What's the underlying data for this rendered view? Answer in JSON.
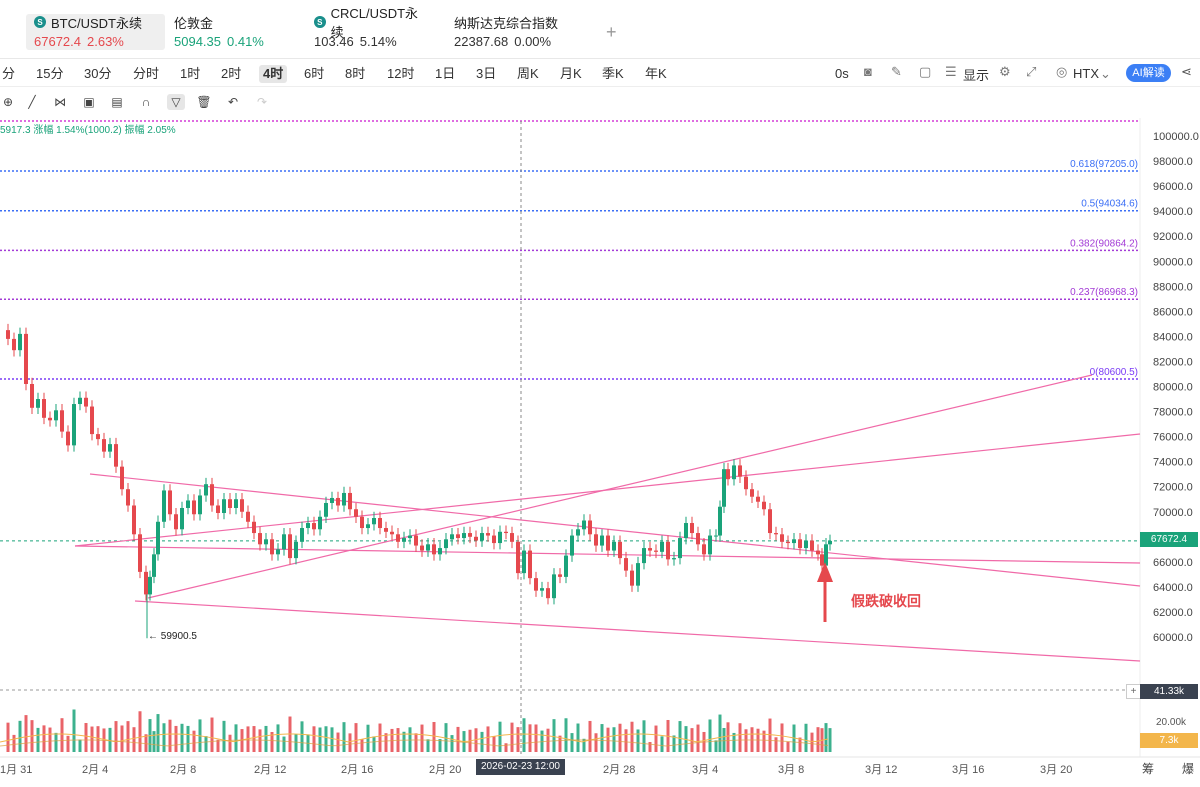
{
  "tickers": [
    {
      "name": "BTC/USDT永续",
      "price": "67672.4",
      "change": "2.63%",
      "dir": "down",
      "active": true
    },
    {
      "name": "伦敦金",
      "price": "5094.35",
      "change": "0.41%",
      "dir": "up",
      "active": false
    },
    {
      "name": "CRCL/USDT永续",
      "price": "103.46",
      "change": "5.14%",
      "dir": "neutral",
      "active": false
    },
    {
      "name": "纳斯达克综合指数",
      "price": "22387.68",
      "change": "0.00%",
      "dir": "neutral",
      "active": false
    }
  ],
  "add_label": "+",
  "intervals": [
    "分",
    "15分",
    "30分",
    "分时",
    "1时",
    "2时",
    "4时",
    "6时",
    "8时",
    "12时",
    "1日",
    "3日",
    "周K",
    "月K",
    "季K",
    "年K"
  ],
  "active_interval": "4时",
  "right_tools": {
    "countdown": "0s",
    "display": "显示",
    "exchange": "HTX",
    "ai": "AI解读"
  },
  "legend": "5917.3  涨幅 1.54%(1000.2)  振幅 2.05%",
  "y_axis": [
    "100000.0",
    "98000.0",
    "96000.0",
    "94000.0",
    "92000.0",
    "90000.0",
    "88000.0",
    "86000.0",
    "84000.0",
    "82000.0",
    "80000.0",
    "78000.0",
    "76000.0",
    "74000.0",
    "72000.0",
    "70000.0",
    "68000.0",
    "66000.0",
    "64000.0",
    "62000.0",
    "60000.0"
  ],
  "fib_levels": [
    {
      "label": "0.618(97205.0)",
      "value": 97205.0,
      "color": "#3b6ef5"
    },
    {
      "label": "0.5(94034.6)",
      "value": 94034.6,
      "color": "#3b6ef5"
    },
    {
      "label": "0.382(90864.2)",
      "value": 90864.2,
      "color": "#a33bd6"
    },
    {
      "label": "0.237(86968.3)",
      "value": 86968.3,
      "color": "#a33bd6"
    },
    {
      "label": "0(80600.5)",
      "value": 80600.5,
      "color": "#7a3bf5"
    }
  ],
  "current_price": "67672.4",
  "low_label": "← 59900.5",
  "annotation": "假跌破收回",
  "volume": {
    "current": "41.33k",
    "axis": "20.00k",
    "ma": "7.3k"
  },
  "dates": [
    "1月 31",
    "2月 4",
    "2月 8",
    "2月 12",
    "2月 16",
    "2月 20",
    "2月 24",
    "2月 28",
    "3月 4",
    "3月 8",
    "3月 12",
    "3月 16",
    "3月 20"
  ],
  "crosshair_date": "2026-02-23 12:00",
  "corner_labels": [
    "筹",
    "爆"
  ],
  "colors": {
    "up": "#1aa37a",
    "down": "#e5484d",
    "channel": "#f06aa8",
    "accent": "#3b7ff5"
  }
}
